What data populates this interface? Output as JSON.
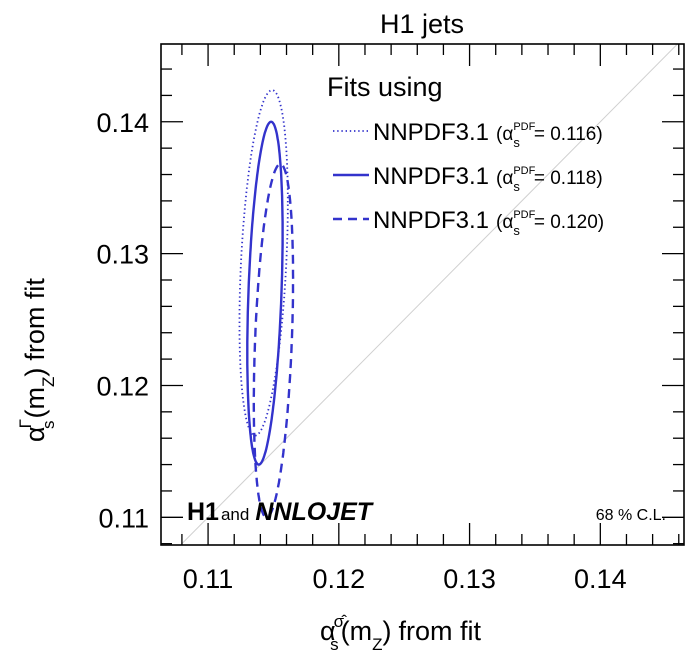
{
  "chart_data": {
    "type": "scatter",
    "title": "H1 jets",
    "xlabel": {
      "symbol": "α",
      "sub": "s",
      "sup": "σ̂",
      "arg_open": "(m",
      "arg_sub": "Z",
      "arg_close": ")",
      "rest": "from fit"
    },
    "ylabel": {
      "symbol": "α",
      "sub": "s",
      "sup": "Γ",
      "arg_open": "(m",
      "arg_sub": "Z",
      "arg_close": ")",
      "rest": "from fit"
    },
    "xlim": [
      0.1064,
      0.1464
    ],
    "ylim": [
      0.1079,
      0.1459
    ],
    "xticks": [
      {
        "value": 0.11,
        "label": "0.11"
      },
      {
        "value": 0.12,
        "label": "0.12"
      },
      {
        "value": 0.13,
        "label": "0.13"
      },
      {
        "value": 0.14,
        "label": "0.14"
      }
    ],
    "yticks": [
      {
        "value": 0.11,
        "label": "0.11"
      },
      {
        "value": 0.12,
        "label": "0.12"
      },
      {
        "value": 0.13,
        "label": "0.13"
      },
      {
        "value": 0.14,
        "label": "0.14"
      }
    ],
    "diagonal": true,
    "grid": false,
    "legend_header": "Fits using",
    "legend_placement": "top-right",
    "series": [
      {
        "name": "NNPDF3.1",
        "pdf_label_prefix": "(α",
        "pdf_sub": "s",
        "pdf_sup": "PDF",
        "pdf_value": "= 0.116)",
        "style": "dotted",
        "color": "#3333cc",
        "ellipse": {
          "x_min": 0.1124,
          "x_max": 0.1161,
          "y_min": 0.1162,
          "y_max": 0.1424
        }
      },
      {
        "name": "NNPDF3.1",
        "pdf_label_prefix": "(α",
        "pdf_sub": "s",
        "pdf_sup": "PDF",
        "pdf_value": "= 0.118)",
        "style": "solid",
        "color": "#3333cc",
        "ellipse": {
          "x_min": 0.113,
          "x_max": 0.1157,
          "y_min": 0.114,
          "y_max": 0.14
        }
      },
      {
        "name": "NNPDF3.1",
        "pdf_label_prefix": "(α",
        "pdf_sub": "s",
        "pdf_sup": "PDF",
        "pdf_value": "= 0.120)",
        "style": "dashed",
        "color": "#3333cc",
        "ellipse": {
          "x_min": 0.1135,
          "x_max": 0.1165,
          "y_min": 0.11,
          "y_max": 0.1368
        }
      }
    ],
    "logo": {
      "h1": "H1",
      "and": "and",
      "nnlojet": "NNLOJET"
    },
    "annotation": "68 % C.L."
  }
}
